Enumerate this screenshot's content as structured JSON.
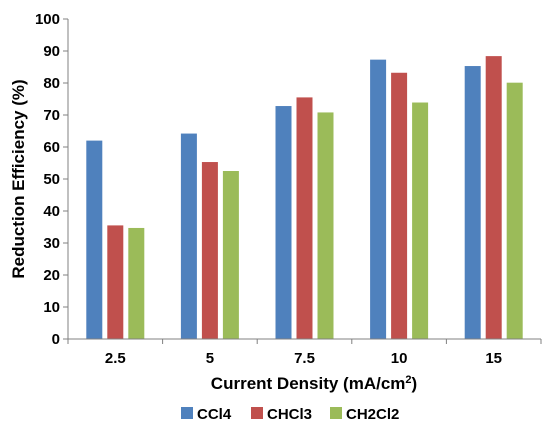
{
  "chart_data": {
    "type": "bar",
    "categories": [
      "2.5",
      "5",
      "7.5",
      "10",
      "15"
    ],
    "series": [
      {
        "name": "CCl4",
        "color": "#4f81bd",
        "values": [
          62,
          64.2,
          72.8,
          87.3,
          85.3
        ]
      },
      {
        "name": "CHCl3",
        "color": "#c0504d",
        "values": [
          35.5,
          55.3,
          75.5,
          83.2,
          88.4
        ]
      },
      {
        "name": "CH2Cl2",
        "color": "#9bbb59",
        "values": [
          34.7,
          52.5,
          70.8,
          73.9,
          80.1
        ]
      }
    ],
    "xlabel": "Current Density (mA/cm",
    "xlabel_sup": "2",
    "xlabel_end": ")",
    "ylabel": "Reduction Efficiency (%)",
    "ylim": [
      0,
      100
    ],
    "yticks": [
      "0",
      "10",
      "20",
      "30",
      "40",
      "50",
      "60",
      "70",
      "80",
      "90",
      "100"
    ],
    "grid": false,
    "legend_position": "bottom"
  }
}
